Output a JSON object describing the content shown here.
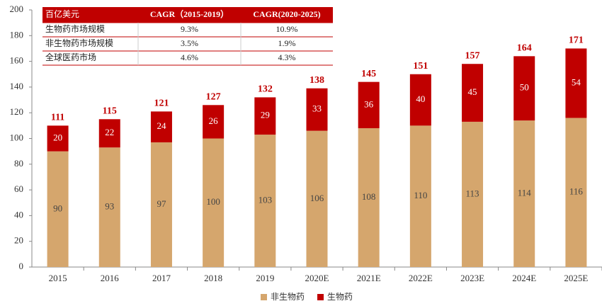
{
  "chart_data": {
    "type": "stacked_bar",
    "categories": [
      "2015",
      "2016",
      "2017",
      "2018",
      "2019",
      "2020E",
      "2021E",
      "2022E",
      "2023E",
      "2024E",
      "2025E"
    ],
    "series": [
      {
        "name": "非生物药",
        "color": "#d5a66d",
        "values": [
          90,
          93,
          97,
          100,
          103,
          106,
          108,
          110,
          113,
          114,
          116
        ]
      },
      {
        "name": "生物药",
        "color": "#c00000",
        "values": [
          20,
          22,
          24,
          26,
          29,
          33,
          36,
          40,
          45,
          50,
          54
        ]
      }
    ],
    "totals": [
      111,
      115,
      121,
      127,
      132,
      138,
      145,
      151,
      157,
      164,
      171
    ],
    "ylim": [
      0,
      200
    ],
    "yticks": [
      0,
      20,
      40,
      60,
      80,
      100,
      120,
      140,
      160,
      180,
      200
    ],
    "legend": "bottom"
  },
  "table": {
    "header": [
      "百亿美元",
      "CAGR（2015-2019）",
      "CAGR(2020-2025)"
    ],
    "rows": [
      [
        "生物药市场规模",
        "9.3%",
        "10.9%"
      ],
      [
        "非生物药市场规模",
        "3.5%",
        "1.9%"
      ],
      [
        "全球医药市场",
        "4.6%",
        "4.3%"
      ]
    ]
  }
}
